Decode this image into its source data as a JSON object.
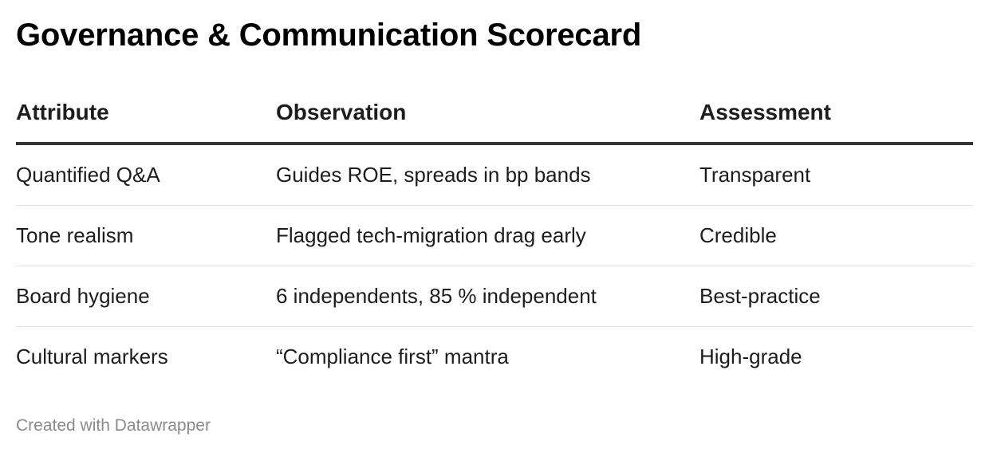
{
  "chart_data": {
    "type": "table",
    "title": "Governance & Communication Scorecard",
    "columns": [
      "Attribute",
      "Observation",
      "Assessment"
    ],
    "rows": [
      [
        "Quantified Q&A",
        "Guides ROE, spreads in bp bands",
        "Transparent"
      ],
      [
        "Tone realism",
        "Flagged tech-migration drag early",
        "Credible"
      ],
      [
        "Board hygiene",
        "6 independents, 85 % independent",
        "Best-practice"
      ],
      [
        "Cultural markers",
        "“Compliance first” mantra",
        "High-grade"
      ]
    ]
  },
  "footer": {
    "credit": "Created with Datawrapper"
  },
  "colors": {
    "text": "#1d1d1d",
    "header_rule": "#333333",
    "row_divider": "#e2e2e2",
    "footer_text": "#8a8a8a"
  }
}
